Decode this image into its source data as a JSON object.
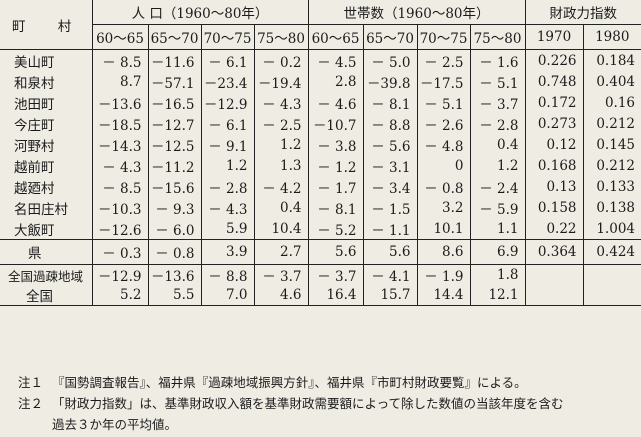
{
  "header": {
    "town": "町 村",
    "population": "人 口（1960〜80年）",
    "households": "世帯数（1960〜80年）",
    "fiscal": "財政力指数",
    "periods": [
      "60〜65",
      "65〜70",
      "70〜75",
      "75〜80"
    ],
    "years": [
      "1970",
      "1980"
    ]
  },
  "rows": [
    {
      "name": "美山町",
      "pop": [
        "－ 8.5",
        "－11.6",
        "－ 6.1",
        "－ 0.2"
      ],
      "hh": [
        "－ 4.5",
        "－ 5.0",
        "－ 2.5",
        "－ 1.6"
      ],
      "fi": [
        "0.226",
        "0.184"
      ]
    },
    {
      "name": "和泉村",
      "pop": [
        "8.7",
        "－57.1",
        "－23.4",
        "－19.4"
      ],
      "hh": [
        "2.8",
        "－39.8",
        "－17.5",
        "－ 5.1"
      ],
      "fi": [
        "0.748",
        "0.404"
      ]
    },
    {
      "name": "池田町",
      "pop": [
        "－13.6",
        "－16.5",
        "－12.9",
        "－ 4.3"
      ],
      "hh": [
        "－ 4.6",
        "－ 8.1",
        "－ 5.1",
        "－ 3.7"
      ],
      "fi": [
        "0.172",
        "0.16"
      ]
    },
    {
      "name": "今庄町",
      "pop": [
        "－18.5",
        "－12.7",
        "－ 6.1",
        "－ 2.5"
      ],
      "hh": [
        "－10.7",
        "－ 8.8",
        "－ 2.6",
        "－ 2.8"
      ],
      "fi": [
        "0.273",
        "0.212"
      ]
    },
    {
      "name": "河野村",
      "pop": [
        "－14.3",
        "－12.5",
        "－ 9.1",
        "1.2"
      ],
      "hh": [
        "－ 3.8",
        "－ 5.6",
        "－ 4.8",
        "0.4"
      ],
      "fi": [
        "0.12",
        "0.145"
      ]
    },
    {
      "name": "越前町",
      "pop": [
        "－ 4.3",
        "－11.2",
        "1.2",
        "1.3"
      ],
      "hh": [
        "－ 1.2",
        "－ 3.1",
        "0",
        "1.2"
      ],
      "fi": [
        "0.168",
        "0.212"
      ]
    },
    {
      "name": "越廼村",
      "pop": [
        "－ 8.5",
        "－15.6",
        "－ 2.8",
        "－ 4.2"
      ],
      "hh": [
        "－ 1.7",
        "－ 3.4",
        "－ 0.8",
        "－ 2.4"
      ],
      "fi": [
        "0.13",
        "0.133"
      ]
    },
    {
      "name": "名田庄村",
      "pop": [
        "－10.3",
        "－ 9.3",
        "－ 4.3",
        "0.4"
      ],
      "hh": [
        "－ 8.1",
        "－ 1.5",
        "3.2",
        "－ 5.9"
      ],
      "fi": [
        "0.158",
        "0.138"
      ]
    },
    {
      "name": "大飯町",
      "pop": [
        "－12.6",
        "－ 6.0",
        "5.9",
        "10.4"
      ],
      "hh": [
        "－ 5.2",
        "－ 1.1",
        "10.1",
        "1.1"
      ],
      "fi": [
        "0.22",
        "1.004"
      ]
    }
  ],
  "pref": {
    "name": "県",
    "pop": [
      "－ 0.3",
      "－ 0.8",
      "3.9",
      "2.7"
    ],
    "hh": [
      "5.6",
      "5.6",
      "8.6",
      "6.9"
    ],
    "fi": [
      "0.364",
      "0.424"
    ]
  },
  "national": [
    {
      "name": "全国過疎地域",
      "pop": [
        "－12.9",
        "－13.6",
        "－ 8.8",
        "－ 3.7"
      ],
      "hh": [
        "－ 3.7",
        "－ 4.1",
        "－ 1.9",
        "1.8"
      ],
      "fi": [
        "",
        ""
      ]
    },
    {
      "name": "全国",
      "pop": [
        "5.2",
        "5.5",
        "7.0",
        "4.6"
      ],
      "hh": [
        "16.4",
        "15.7",
        "14.4",
        "12.1"
      ],
      "fi": [
        "",
        ""
      ]
    }
  ],
  "notes": {
    "n1_mark": "注１",
    "n1_text": "『国勢調査報告』、福井県『過疎地域振興方針』、福井県『市町村財政要覧』による。",
    "n2_mark": "注２",
    "n2_text": "「財政力指数」は、基準財政収入額を基準財政需要額によって除した数値の当該年度を含む",
    "n2_cont": "過去３か年の平均値。"
  }
}
